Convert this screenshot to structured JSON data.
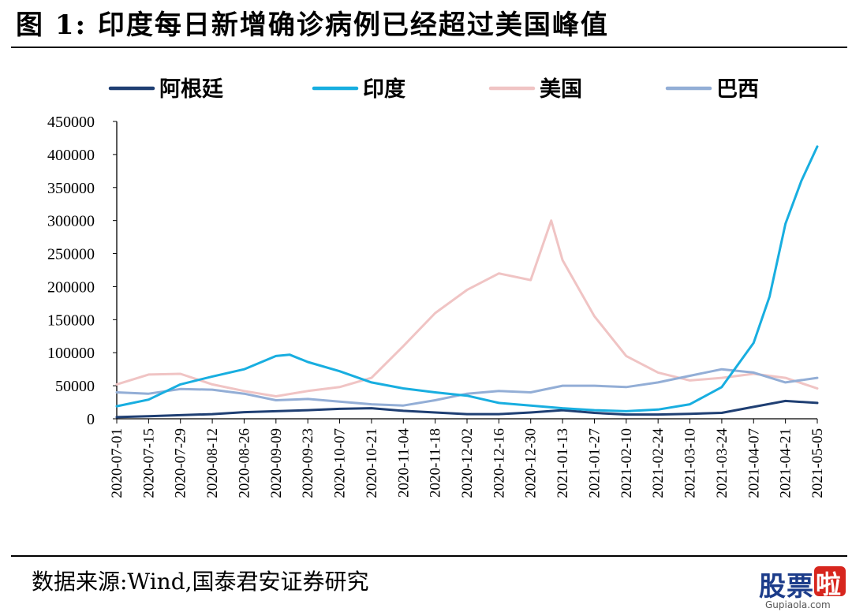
{
  "figure": {
    "title": "图 1:  印度每日新增确诊病例已经超过美国峰值",
    "source": "数据来源:Wind,国泰君安证券研究"
  },
  "watermark": {
    "brand_main": "股票",
    "brand_badge": "啦",
    "url": "Gupiaola.com"
  },
  "chart_data": {
    "type": "line",
    "title": "",
    "xlabel": "",
    "ylabel": "",
    "ylim": [
      0,
      450000
    ],
    "yticks": [
      0,
      50000,
      100000,
      150000,
      200000,
      250000,
      300000,
      350000,
      400000,
      450000
    ],
    "x_start": "2020-07-01",
    "x_end": "2021-05-05",
    "xticks": [
      "2020-07-01",
      "2020-07-15",
      "2020-07-29",
      "2020-08-12",
      "2020-08-26",
      "2020-09-09",
      "2020-09-23",
      "2020-10-07",
      "2020-10-21",
      "2020-11-04",
      "2020-11-18",
      "2020-12-02",
      "2020-12-16",
      "2020-12-30",
      "2021-01-13",
      "2021-01-27",
      "2021-02-10",
      "2021-02-24",
      "2021-03-10",
      "2021-03-24",
      "2021-04-07",
      "2021-04-21",
      "2021-05-05"
    ],
    "legend_position": "top",
    "grid": false,
    "series": [
      {
        "name": "阿根廷",
        "color": "#1f3f73",
        "points": [
          [
            "2020-07-01",
            2500
          ],
          [
            "2020-07-15",
            3800
          ],
          [
            "2020-07-29",
            5500
          ],
          [
            "2020-08-12",
            7000
          ],
          [
            "2020-08-26",
            10000
          ],
          [
            "2020-09-09",
            11500
          ],
          [
            "2020-09-23",
            13000
          ],
          [
            "2020-10-07",
            15000
          ],
          [
            "2020-10-21",
            16000
          ],
          [
            "2020-11-04",
            12000
          ],
          [
            "2020-11-18",
            9500
          ],
          [
            "2020-12-02",
            7000
          ],
          [
            "2020-12-16",
            7000
          ],
          [
            "2020-12-30",
            9500
          ],
          [
            "2021-01-13",
            13000
          ],
          [
            "2021-01-27",
            9000
          ],
          [
            "2021-02-10",
            6500
          ],
          [
            "2021-02-24",
            6500
          ],
          [
            "2021-03-10",
            7500
          ],
          [
            "2021-03-24",
            9000
          ],
          [
            "2021-04-07",
            18000
          ],
          [
            "2021-04-21",
            27000
          ],
          [
            "2021-05-05",
            24000
          ]
        ]
      },
      {
        "name": "印度",
        "color": "#18aee0",
        "points": [
          [
            "2020-07-01",
            19000
          ],
          [
            "2020-07-15",
            29000
          ],
          [
            "2020-07-29",
            52000
          ],
          [
            "2020-08-12",
            64000
          ],
          [
            "2020-08-26",
            75000
          ],
          [
            "2020-09-09",
            95000
          ],
          [
            "2020-09-15",
            97000
          ],
          [
            "2020-09-23",
            86000
          ],
          [
            "2020-10-07",
            72000
          ],
          [
            "2020-10-21",
            55000
          ],
          [
            "2020-11-04",
            46000
          ],
          [
            "2020-11-18",
            40000
          ],
          [
            "2020-12-02",
            35000
          ],
          [
            "2020-12-16",
            24000
          ],
          [
            "2020-12-30",
            20000
          ],
          [
            "2021-01-13",
            16000
          ],
          [
            "2021-01-27",
            13000
          ],
          [
            "2021-02-10",
            11500
          ],
          [
            "2021-02-24",
            14000
          ],
          [
            "2021-03-10",
            22000
          ],
          [
            "2021-03-24",
            48000
          ],
          [
            "2021-04-07",
            115000
          ],
          [
            "2021-04-14",
            185000
          ],
          [
            "2021-04-21",
            295000
          ],
          [
            "2021-04-28",
            360000
          ],
          [
            "2021-05-05",
            412000
          ]
        ]
      },
      {
        "name": "美国",
        "color": "#f0c4c4",
        "points": [
          [
            "2020-07-01",
            52000
          ],
          [
            "2020-07-15",
            67000
          ],
          [
            "2020-07-29",
            68000
          ],
          [
            "2020-08-12",
            52000
          ],
          [
            "2020-08-26",
            42000
          ],
          [
            "2020-09-09",
            34000
          ],
          [
            "2020-09-23",
            42000
          ],
          [
            "2020-10-07",
            48000
          ],
          [
            "2020-10-21",
            62000
          ],
          [
            "2020-11-04",
            110000
          ],
          [
            "2020-11-18",
            160000
          ],
          [
            "2020-12-02",
            195000
          ],
          [
            "2020-12-16",
            220000
          ],
          [
            "2020-12-30",
            210000
          ],
          [
            "2021-01-08",
            300000
          ],
          [
            "2021-01-13",
            240000
          ],
          [
            "2021-01-27",
            155000
          ],
          [
            "2021-02-10",
            95000
          ],
          [
            "2021-02-24",
            70000
          ],
          [
            "2021-03-10",
            58000
          ],
          [
            "2021-03-24",
            62000
          ],
          [
            "2021-04-07",
            68000
          ],
          [
            "2021-04-21",
            62000
          ],
          [
            "2021-05-05",
            46000
          ]
        ]
      },
      {
        "name": "巴西",
        "color": "#93aed6",
        "points": [
          [
            "2020-07-01",
            40000
          ],
          [
            "2020-07-15",
            38000
          ],
          [
            "2020-07-29",
            45000
          ],
          [
            "2020-08-12",
            44000
          ],
          [
            "2020-08-26",
            38000
          ],
          [
            "2020-09-09",
            28000
          ],
          [
            "2020-09-23",
            30000
          ],
          [
            "2020-10-07",
            26000
          ],
          [
            "2020-10-21",
            22000
          ],
          [
            "2020-11-04",
            20000
          ],
          [
            "2020-11-18",
            28000
          ],
          [
            "2020-12-02",
            38000
          ],
          [
            "2020-12-16",
            42000
          ],
          [
            "2020-12-30",
            40000
          ],
          [
            "2021-01-13",
            50000
          ],
          [
            "2021-01-27",
            50000
          ],
          [
            "2021-02-10",
            48000
          ],
          [
            "2021-02-24",
            55000
          ],
          [
            "2021-03-10",
            65000
          ],
          [
            "2021-03-24",
            75000
          ],
          [
            "2021-04-07",
            70000
          ],
          [
            "2021-04-21",
            55000
          ],
          [
            "2021-05-05",
            62000
          ]
        ]
      }
    ]
  }
}
